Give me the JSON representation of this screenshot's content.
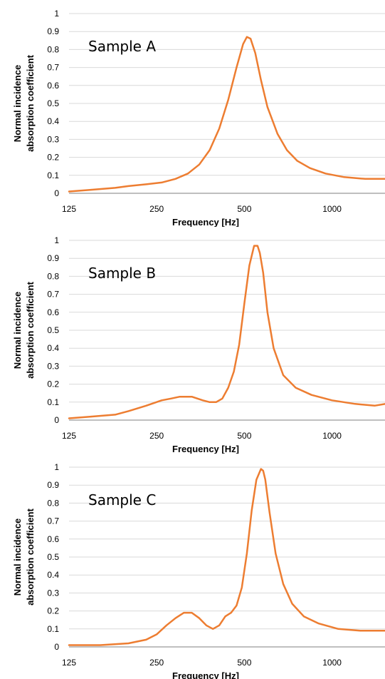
{
  "colors": {
    "series": "#ed7d31",
    "grid": "#d9d9d9",
    "axis": "#7f7f7f"
  },
  "chart_data": [
    {
      "type": "line",
      "title": "Sample A",
      "xlabel": "Frequency [Hz]",
      "ylabel_line1": "Normal incidence",
      "ylabel_line2": "absorption coefficient",
      "x_scale": "log",
      "xlim": [
        125,
        1520
      ],
      "ylim": [
        0,
        1
      ],
      "xticks": [
        125,
        250,
        500,
        1000
      ],
      "xtick_labels": [
        "125",
        "250",
        "500",
        "1000"
      ],
      "yticks": [
        0,
        0.1,
        0.2,
        0.3,
        0.4,
        0.5,
        0.6,
        0.7,
        0.8,
        0.9,
        1
      ],
      "ytick_labels": [
        "0",
        "0.1",
        "0.2",
        "0.3",
        "0.4",
        "0.5",
        "0.6",
        "0.7",
        "0.8",
        "0.9",
        "1"
      ],
      "grid": true,
      "series": [
        {
          "x": [
            125,
            150,
            180,
            200,
            230,
            260,
            290,
            320,
            350,
            380,
            410,
            440,
            470,
            495,
            510,
            525,
            545,
            570,
            600,
            650,
            700,
            760,
            840,
            950,
            1100,
            1300,
            1520
          ],
          "y": [
            0.01,
            0.02,
            0.03,
            0.04,
            0.05,
            0.06,
            0.08,
            0.11,
            0.16,
            0.24,
            0.36,
            0.52,
            0.7,
            0.83,
            0.87,
            0.86,
            0.78,
            0.63,
            0.48,
            0.33,
            0.24,
            0.18,
            0.14,
            0.11,
            0.09,
            0.08,
            0.08
          ]
        }
      ]
    },
    {
      "type": "line",
      "title": "Sample B",
      "xlabel": "Frequency [Hz]",
      "ylabel_line1": "Normal incidence",
      "ylabel_line2": "absorption coefficient",
      "x_scale": "log",
      "xlim": [
        125,
        1520
      ],
      "ylim": [
        0,
        1
      ],
      "xticks": [
        125,
        250,
        500,
        1000
      ],
      "xtick_labels": [
        "125",
        "250",
        "500",
        "1000"
      ],
      "yticks": [
        0,
        0.1,
        0.2,
        0.3,
        0.4,
        0.5,
        0.6,
        0.7,
        0.8,
        0.9,
        1
      ],
      "ytick_labels": [
        "0",
        "0.1",
        "0.2",
        "0.3",
        "0.4",
        "0.5",
        "0.6",
        "0.7",
        "0.8",
        "0.9",
        "1"
      ],
      "grid": true,
      "series": [
        {
          "x": [
            125,
            150,
            180,
            200,
            230,
            260,
            280,
            300,
            330,
            360,
            380,
            400,
            420,
            440,
            460,
            480,
            500,
            520,
            540,
            555,
            565,
            580,
            600,
            630,
            680,
            750,
            850,
            1000,
            1200,
            1400,
            1520
          ],
          "y": [
            0.01,
            0.02,
            0.03,
            0.05,
            0.08,
            0.11,
            0.12,
            0.13,
            0.13,
            0.11,
            0.1,
            0.1,
            0.12,
            0.18,
            0.27,
            0.42,
            0.65,
            0.86,
            0.97,
            0.97,
            0.93,
            0.82,
            0.6,
            0.4,
            0.25,
            0.18,
            0.14,
            0.11,
            0.09,
            0.08,
            0.09
          ]
        }
      ]
    },
    {
      "type": "line",
      "title": "Sample C",
      "xlabel": "Frequency [Hz]",
      "ylabel_line1": "Normal incidence",
      "ylabel_line2": "absorption coefficient",
      "x_scale": "log",
      "xlim": [
        125,
        1520
      ],
      "ylim": [
        0,
        1
      ],
      "xticks": [
        125,
        250,
        500,
        1000
      ],
      "xtick_labels": [
        "125",
        "250",
        "500",
        "1000"
      ],
      "yticks": [
        0,
        0.1,
        0.2,
        0.3,
        0.4,
        0.5,
        0.6,
        0.7,
        0.8,
        0.9,
        1
      ],
      "ytick_labels": [
        "0",
        "0.1",
        "0.2",
        "0.3",
        "0.4",
        "0.5",
        "0.6",
        "0.7",
        "0.8",
        "0.9",
        "1"
      ],
      "grid": true,
      "series": [
        {
          "x": [
            125,
            160,
            200,
            230,
            250,
            270,
            290,
            310,
            330,
            350,
            370,
            390,
            410,
            430,
            450,
            470,
            490,
            510,
            530,
            550,
            570,
            580,
            590,
            610,
            640,
            680,
            730,
            800,
            900,
            1050,
            1250,
            1520
          ],
          "y": [
            0.01,
            0.01,
            0.02,
            0.04,
            0.07,
            0.12,
            0.16,
            0.19,
            0.19,
            0.16,
            0.12,
            0.1,
            0.12,
            0.17,
            0.19,
            0.23,
            0.33,
            0.52,
            0.76,
            0.93,
            0.99,
            0.98,
            0.93,
            0.75,
            0.52,
            0.35,
            0.24,
            0.17,
            0.13,
            0.1,
            0.09,
            0.09
          ]
        }
      ]
    }
  ]
}
